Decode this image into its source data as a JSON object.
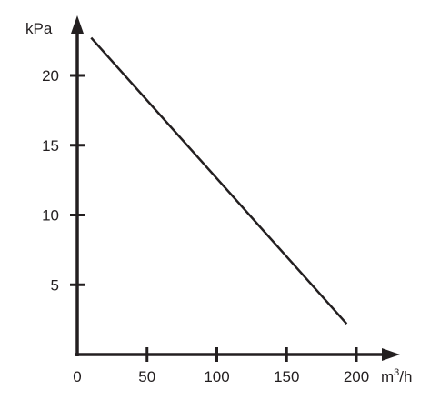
{
  "chart_data": {
    "type": "line",
    "title": "",
    "xlabel": "",
    "ylabel": "",
    "x_unit": {
      "base": "m",
      "sup": "3",
      "rest": "/h"
    },
    "y_unit": "kPa",
    "x_ticks": [
      {
        "value": 0,
        "label": "0"
      },
      {
        "value": 50,
        "label": "50"
      },
      {
        "value": 100,
        "label": "100"
      },
      {
        "value": 150,
        "label": "150"
      },
      {
        "value": 200,
        "label": "200"
      }
    ],
    "y_ticks": [
      {
        "value": 5,
        "label": "5"
      },
      {
        "value": 10,
        "label": "10"
      },
      {
        "value": 15,
        "label": "15"
      },
      {
        "value": 20,
        "label": "20"
      }
    ],
    "xlim": [
      0,
      200
    ],
    "ylim": [
      0,
      20
    ],
    "grid": false,
    "series": [
      {
        "color": "#231f20",
        "x": [
          10,
          193
        ],
        "y": [
          22.7,
          2.2
        ]
      }
    ]
  }
}
